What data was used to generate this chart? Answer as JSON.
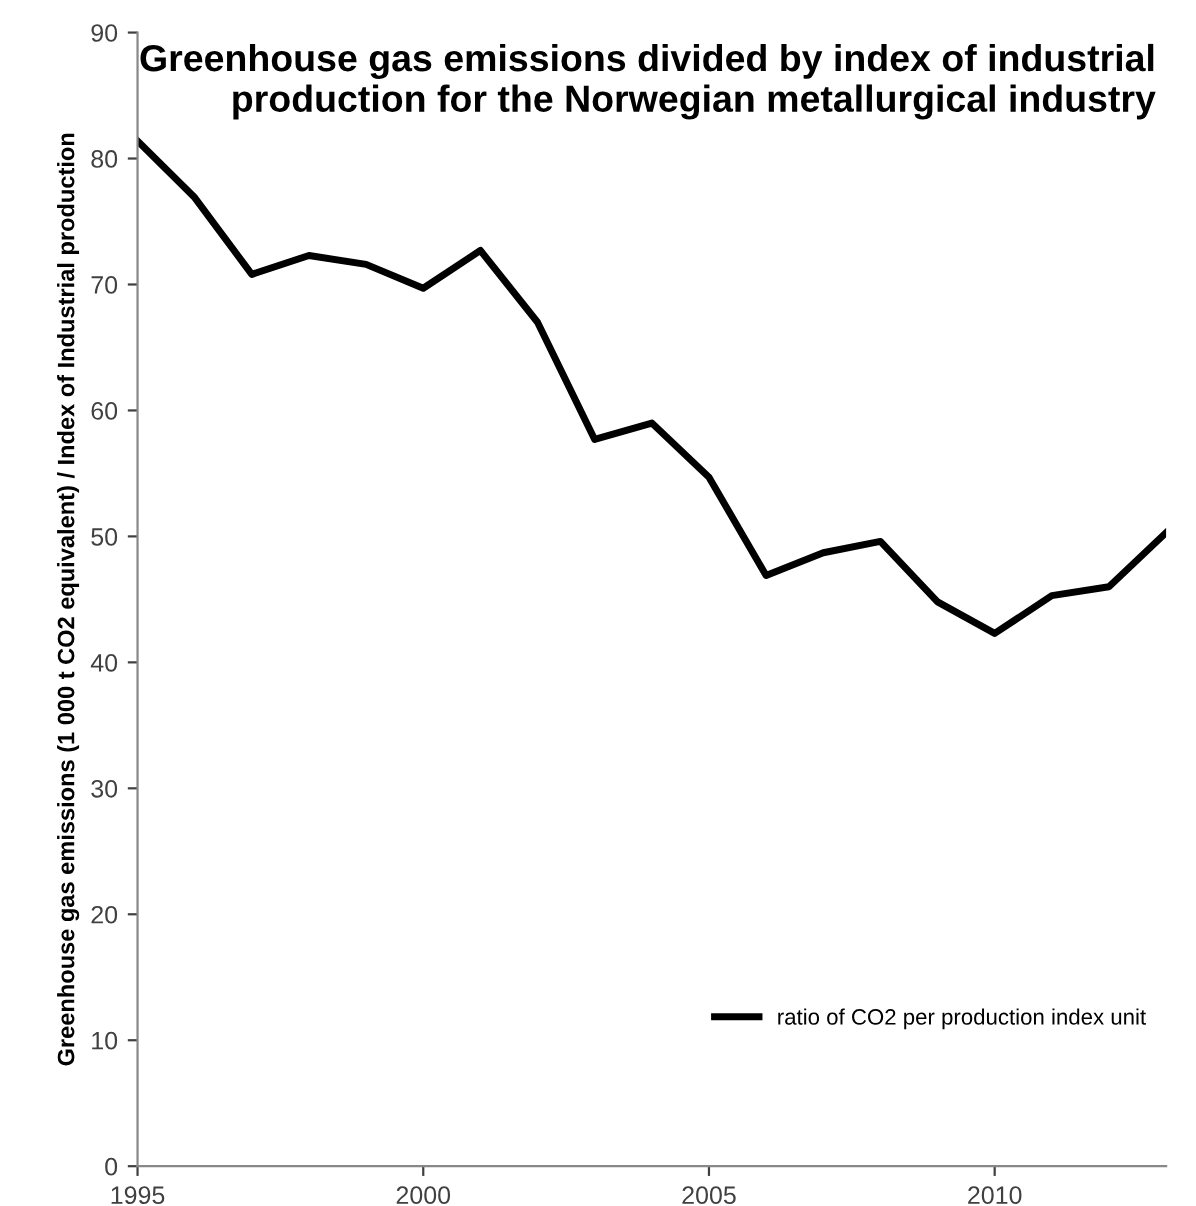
{
  "chart_data": {
    "type": "line",
    "title": "Greenhouse gas emissions divided by index of industrial\nproduction for the Norwegian metallurgical industry",
    "ylabel": "Greenhouse gas emissions (1 000 t CO2 equivalent) / Index of Industrial production",
    "x": [
      1995,
      1996,
      1997,
      1998,
      1999,
      2000,
      2001,
      2002,
      2003,
      2004,
      2005,
      2006,
      2007,
      2008,
      2009,
      2010,
      2011,
      2012,
      2013
    ],
    "series": [
      {
        "name": "ratio of CO2 per production index unit",
        "color": "#000000",
        "values": [
          81.4,
          76.9,
          70.8,
          72.3,
          71.6,
          69.7,
          72.7,
          67.0,
          57.7,
          59.0,
          54.7,
          46.9,
          48.7,
          49.6,
          44.8,
          42.3,
          45.3,
          46.0,
          50.3
        ]
      }
    ],
    "xlim": [
      1995,
      2013
    ],
    "xticks": [
      1995,
      2000,
      2005,
      2010
    ],
    "ylim": [
      0,
      90
    ],
    "yticks": [
      0,
      10,
      20,
      30,
      40,
      50,
      60,
      70,
      80,
      90
    ],
    "grid": false,
    "legend": "right",
    "marker": "none",
    "line_style": "solid"
  }
}
